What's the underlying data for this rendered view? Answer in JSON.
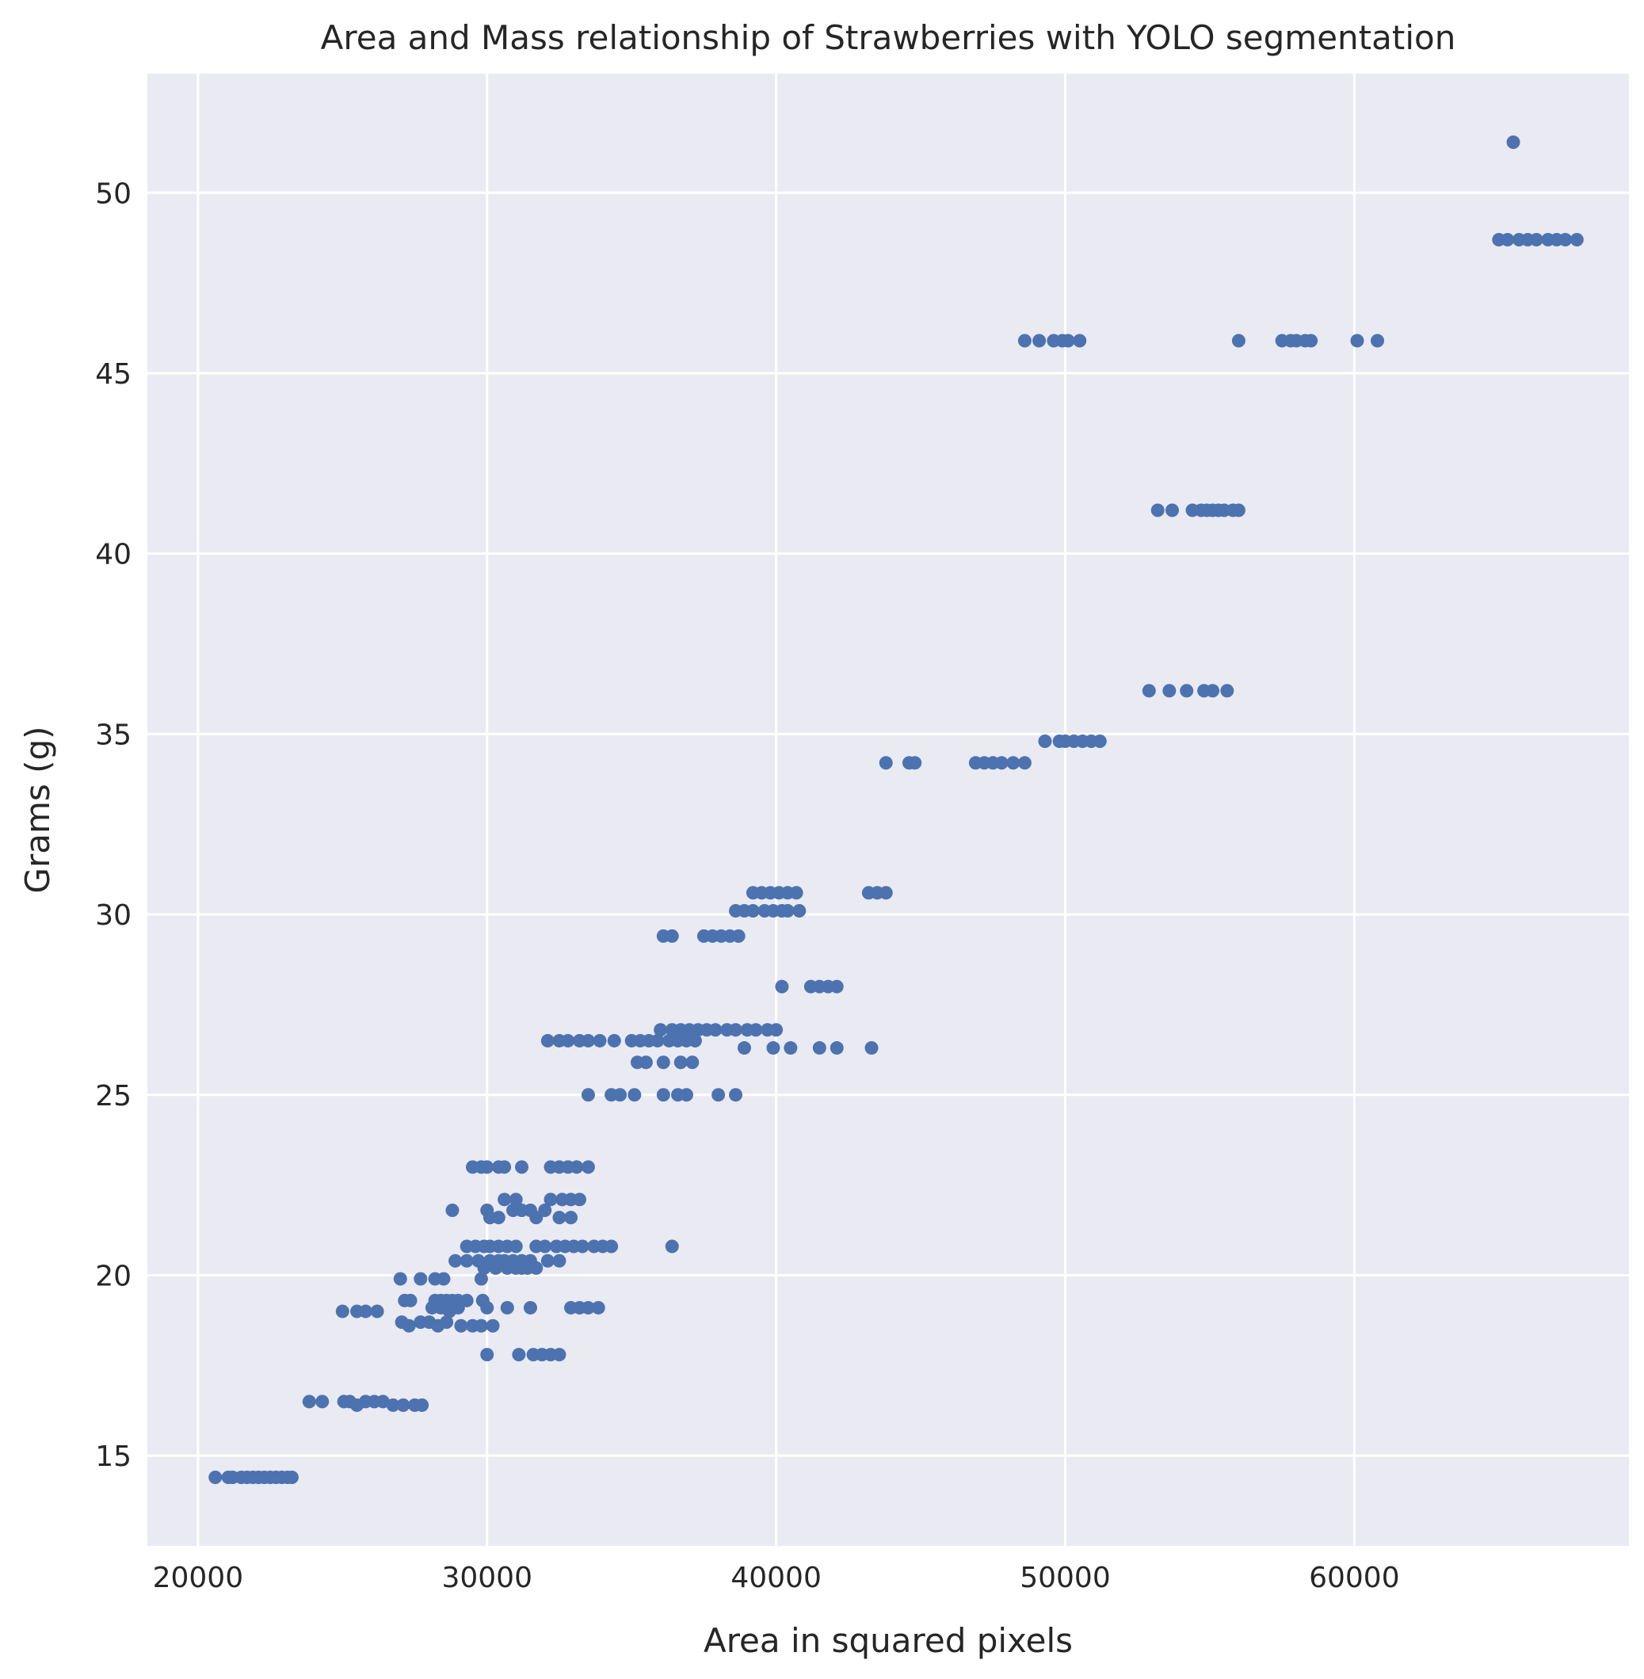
{
  "chart_data": {
    "type": "scatter",
    "title": "Area and Mass relationship of Strawberries with YOLO segmentation",
    "xlabel": "Area in squared pixels",
    "ylabel": "Grams (g)",
    "xlim": [
      18250,
      69500
    ],
    "ylim": [
      12.5,
      53.3
    ],
    "xticks": [
      20000,
      30000,
      40000,
      50000,
      60000
    ],
    "yticks": [
      15,
      20,
      25,
      30,
      35,
      40,
      45,
      50
    ],
    "grid": true,
    "background": "#eaeaf2",
    "grid_color": "#ffffff",
    "point_color": "#4c72b0",
    "series": [
      {
        "points": [
          [
            20600,
            14.4
          ],
          [
            21050,
            14.4
          ],
          [
            21200,
            14.4
          ],
          [
            21500,
            14.4
          ],
          [
            21700,
            14.4
          ],
          [
            21900,
            14.4
          ],
          [
            22100,
            14.4
          ],
          [
            22300,
            14.4
          ],
          [
            22500,
            14.4
          ],
          [
            22700,
            14.4
          ],
          [
            22900,
            14.4
          ],
          [
            23100,
            14.4
          ],
          [
            23250,
            14.4
          ],
          [
            23850,
            16.5
          ],
          [
            24300,
            16.5
          ],
          [
            25050,
            16.5
          ],
          [
            25250,
            16.5
          ],
          [
            25500,
            16.4
          ],
          [
            25800,
            16.5
          ],
          [
            26100,
            16.5
          ],
          [
            26400,
            16.5
          ],
          [
            26750,
            16.4
          ],
          [
            27100,
            16.4
          ],
          [
            27500,
            16.4
          ],
          [
            27750,
            16.4
          ],
          [
            25000,
            19.0
          ],
          [
            25500,
            19.0
          ],
          [
            25800,
            19.0
          ],
          [
            26200,
            19.0
          ],
          [
            27000,
            19.9
          ],
          [
            27700,
            19.9
          ],
          [
            28200,
            19.9
          ],
          [
            28500,
            19.9
          ],
          [
            27150,
            19.3
          ],
          [
            27350,
            19.3
          ],
          [
            28200,
            19.3
          ],
          [
            28400,
            19.3
          ],
          [
            28600,
            19.3
          ],
          [
            28800,
            19.3
          ],
          [
            29000,
            19.3
          ],
          [
            29300,
            19.3
          ],
          [
            28100,
            19.1
          ],
          [
            28400,
            19.1
          ],
          [
            28700,
            19.0
          ],
          [
            29000,
            19.1
          ],
          [
            27050,
            18.7
          ],
          [
            27300,
            18.6
          ],
          [
            27700,
            18.7
          ],
          [
            28000,
            18.7
          ],
          [
            28300,
            18.6
          ],
          [
            28600,
            18.7
          ],
          [
            29100,
            18.6
          ],
          [
            29500,
            18.6
          ],
          [
            29800,
            18.6
          ],
          [
            30200,
            18.6
          ],
          [
            28900,
            20.4
          ],
          [
            29300,
            20.4
          ],
          [
            29700,
            20.4
          ],
          [
            30100,
            20.4
          ],
          [
            30400,
            20.4
          ],
          [
            30600,
            20.4
          ],
          [
            30900,
            20.4
          ],
          [
            31200,
            20.4
          ],
          [
            31500,
            20.4
          ],
          [
            32100,
            20.4
          ],
          [
            32500,
            20.4
          ],
          [
            29900,
            20.2
          ],
          [
            30300,
            20.2
          ],
          [
            30700,
            20.2
          ],
          [
            31000,
            20.2
          ],
          [
            31200,
            20.2
          ],
          [
            31400,
            20.2
          ],
          [
            31700,
            20.2
          ],
          [
            29300,
            20.8
          ],
          [
            29600,
            20.8
          ],
          [
            29900,
            20.8
          ],
          [
            30100,
            20.8
          ],
          [
            30400,
            20.8
          ],
          [
            30700,
            20.8
          ],
          [
            31000,
            20.8
          ],
          [
            31700,
            20.8
          ],
          [
            32000,
            20.8
          ],
          [
            32400,
            20.8
          ],
          [
            32700,
            20.8
          ],
          [
            33000,
            20.8
          ],
          [
            33300,
            20.8
          ],
          [
            33700,
            20.8
          ],
          [
            34000,
            20.8
          ],
          [
            34300,
            20.8
          ],
          [
            36400,
            20.8
          ],
          [
            29800,
            19.9
          ],
          [
            29850,
            19.3
          ],
          [
            30000,
            19.1
          ],
          [
            30700,
            19.1
          ],
          [
            31500,
            19.1
          ],
          [
            32900,
            19.1
          ],
          [
            33200,
            19.1
          ],
          [
            33500,
            19.1
          ],
          [
            33850,
            19.1
          ],
          [
            28800,
            21.8
          ],
          [
            30000,
            21.8
          ],
          [
            30100,
            21.6
          ],
          [
            30400,
            21.6
          ],
          [
            30900,
            21.8
          ],
          [
            31200,
            21.8
          ],
          [
            31500,
            21.8
          ],
          [
            31700,
            21.6
          ],
          [
            32000,
            21.8
          ],
          [
            32500,
            21.6
          ],
          [
            32900,
            21.6
          ],
          [
            30600,
            22.1
          ],
          [
            31000,
            22.1
          ],
          [
            32200,
            22.1
          ],
          [
            32600,
            22.1
          ],
          [
            32900,
            22.1
          ],
          [
            33200,
            22.1
          ],
          [
            29500,
            23.0
          ],
          [
            29800,
            23.0
          ],
          [
            30000,
            23.0
          ],
          [
            30400,
            23.0
          ],
          [
            30600,
            23.0
          ],
          [
            31200,
            23.0
          ],
          [
            32200,
            23.0
          ],
          [
            32500,
            23.0
          ],
          [
            32800,
            23.0
          ],
          [
            33100,
            23.0
          ],
          [
            33500,
            23.0
          ],
          [
            30000,
            17.8
          ],
          [
            31100,
            17.8
          ],
          [
            31600,
            17.8
          ],
          [
            31900,
            17.8
          ],
          [
            32200,
            17.8
          ],
          [
            32500,
            17.8
          ],
          [
            33500,
            25.0
          ],
          [
            34300,
            25.0
          ],
          [
            34600,
            25.0
          ],
          [
            35100,
            25.0
          ],
          [
            36100,
            25.0
          ],
          [
            36600,
            25.0
          ],
          [
            36900,
            25.0
          ],
          [
            38000,
            25.0
          ],
          [
            38600,
            25.0
          ],
          [
            35200,
            25.9
          ],
          [
            35500,
            25.9
          ],
          [
            36100,
            25.9
          ],
          [
            36700,
            25.9
          ],
          [
            37100,
            25.9
          ],
          [
            32100,
            26.5
          ],
          [
            32500,
            26.5
          ],
          [
            32800,
            26.5
          ],
          [
            33200,
            26.5
          ],
          [
            33500,
            26.5
          ],
          [
            33900,
            26.5
          ],
          [
            34400,
            26.5
          ],
          [
            35000,
            26.5
          ],
          [
            35300,
            26.5
          ],
          [
            35600,
            26.5
          ],
          [
            35900,
            26.5
          ],
          [
            36300,
            26.5
          ],
          [
            36600,
            26.5
          ],
          [
            36900,
            26.5
          ],
          [
            37200,
            26.5
          ],
          [
            36000,
            26.8
          ],
          [
            36400,
            26.8
          ],
          [
            36700,
            26.8
          ],
          [
            37000,
            26.8
          ],
          [
            37300,
            26.8
          ],
          [
            37600,
            26.8
          ],
          [
            37900,
            26.8
          ],
          [
            38300,
            26.8
          ],
          [
            38600,
            26.8
          ],
          [
            39000,
            26.8
          ],
          [
            39300,
            26.8
          ],
          [
            39700,
            26.8
          ],
          [
            40000,
            26.8
          ],
          [
            38900,
            26.3
          ],
          [
            39900,
            26.3
          ],
          [
            40500,
            26.3
          ],
          [
            41500,
            26.3
          ],
          [
            42100,
            26.3
          ],
          [
            43300,
            26.3
          ],
          [
            40200,
            28.0
          ],
          [
            41200,
            28.0
          ],
          [
            41500,
            28.0
          ],
          [
            41800,
            28.0
          ],
          [
            42100,
            28.0
          ],
          [
            36100,
            29.4
          ],
          [
            36400,
            29.4
          ],
          [
            37500,
            29.4
          ],
          [
            37800,
            29.4
          ],
          [
            38100,
            29.4
          ],
          [
            38400,
            29.4
          ],
          [
            38700,
            29.4
          ],
          [
            38600,
            30.1
          ],
          [
            38900,
            30.1
          ],
          [
            39200,
            30.1
          ],
          [
            39600,
            30.1
          ],
          [
            39900,
            30.1
          ],
          [
            40200,
            30.1
          ],
          [
            40400,
            30.1
          ],
          [
            40800,
            30.1
          ],
          [
            39200,
            30.6
          ],
          [
            39500,
            30.6
          ],
          [
            39800,
            30.6
          ],
          [
            40100,
            30.6
          ],
          [
            40400,
            30.6
          ],
          [
            40700,
            30.6
          ],
          [
            43200,
            30.6
          ],
          [
            43500,
            30.6
          ],
          [
            43800,
            30.6
          ],
          [
            43800,
            34.2
          ],
          [
            44600,
            34.2
          ],
          [
            44800,
            34.2
          ],
          [
            46900,
            34.2
          ],
          [
            47200,
            34.2
          ],
          [
            47500,
            34.2
          ],
          [
            47800,
            34.2
          ],
          [
            48200,
            34.2
          ],
          [
            48600,
            34.2
          ],
          [
            49300,
            34.8
          ],
          [
            49800,
            34.8
          ],
          [
            50000,
            34.8
          ],
          [
            50300,
            34.8
          ],
          [
            50600,
            34.8
          ],
          [
            50900,
            34.8
          ],
          [
            51200,
            34.8
          ],
          [
            52900,
            36.2
          ],
          [
            53600,
            36.2
          ],
          [
            54200,
            36.2
          ],
          [
            54800,
            36.2
          ],
          [
            55100,
            36.2
          ],
          [
            55600,
            36.2
          ],
          [
            53200,
            41.2
          ],
          [
            53700,
            41.2
          ],
          [
            54400,
            41.2
          ],
          [
            54700,
            41.2
          ],
          [
            54900,
            41.2
          ],
          [
            55100,
            41.2
          ],
          [
            55300,
            41.2
          ],
          [
            55500,
            41.2
          ],
          [
            55800,
            41.2
          ],
          [
            56000,
            41.2
          ],
          [
            48600,
            45.9
          ],
          [
            49100,
            45.9
          ],
          [
            49600,
            45.9
          ],
          [
            49900,
            45.9
          ],
          [
            50100,
            45.9
          ],
          [
            50500,
            45.9
          ],
          [
            56000,
            45.9
          ],
          [
            57500,
            45.9
          ],
          [
            57800,
            45.9
          ],
          [
            58000,
            45.9
          ],
          [
            58300,
            45.9
          ],
          [
            58500,
            45.9
          ],
          [
            60100,
            45.9
          ],
          [
            60800,
            45.9
          ],
          [
            65000,
            48.7
          ],
          [
            65300,
            48.7
          ],
          [
            65700,
            48.7
          ],
          [
            66000,
            48.7
          ],
          [
            66300,
            48.7
          ],
          [
            66700,
            48.7
          ],
          [
            67000,
            48.7
          ],
          [
            67300,
            48.7
          ],
          [
            67700,
            48.7
          ],
          [
            65500,
            51.4
          ]
        ]
      }
    ]
  }
}
